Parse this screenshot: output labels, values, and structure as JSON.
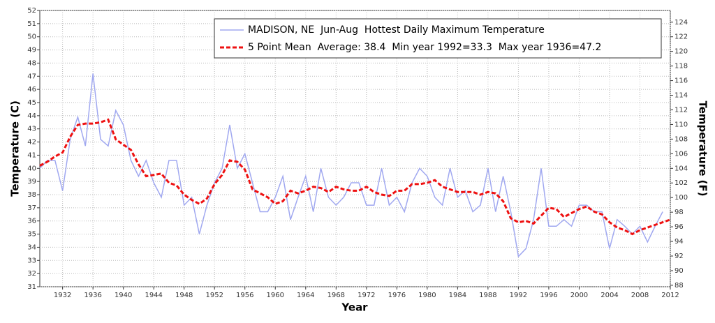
{
  "chart_data": {
    "type": "line",
    "xlabel": "Year",
    "ylabel": "Temperature (C)",
    "y2label": "Temperature (F)",
    "x": [
      1929,
      1930,
      1931,
      1932,
      1933,
      1934,
      1935,
      1936,
      1937,
      1938,
      1939,
      1940,
      1941,
      1942,
      1943,
      1944,
      1945,
      1946,
      1947,
      1948,
      1949,
      1950,
      1951,
      1952,
      1953,
      1954,
      1955,
      1956,
      1957,
      1958,
      1959,
      1960,
      1961,
      1962,
      1963,
      1964,
      1965,
      1966,
      1967,
      1968,
      1969,
      1970,
      1971,
      1972,
      1973,
      1974,
      1975,
      1976,
      1977,
      1978,
      1979,
      1980,
      1981,
      1982,
      1983,
      1984,
      1985,
      1986,
      1987,
      1988,
      1989,
      1990,
      1991,
      1992,
      1993,
      1994,
      1995,
      1996,
      1997,
      1998,
      1999,
      2000,
      2001,
      2002,
      2003,
      2004,
      2005,
      2006,
      2007,
      2008,
      2009,
      2010,
      2011,
      2012
    ],
    "series": [
      {
        "name": "MADISON, NE  Jun-Aug  Hottest Daily Maximum Temperature",
        "color": "#a0a8f0",
        "dash": false,
        "values": [
          40.0,
          40.6,
          40.6,
          38.3,
          42.2,
          43.9,
          41.7,
          47.2,
          42.2,
          41.7,
          44.4,
          43.3,
          40.6,
          39.4,
          40.6,
          38.9,
          37.8,
          40.6,
          40.6,
          37.2,
          37.8,
          35.0,
          37.2,
          38.9,
          40.0,
          43.3,
          40.0,
          41.1,
          38.9,
          36.7,
          36.7,
          37.8,
          39.4,
          36.1,
          37.8,
          39.4,
          36.7,
          40.0,
          37.8,
          37.2,
          37.8,
          38.9,
          38.9,
          37.2,
          37.2,
          40.0,
          37.2,
          37.8,
          36.7,
          38.9,
          40.0,
          39.4,
          37.8,
          37.2,
          40.0,
          37.8,
          38.3,
          36.7,
          37.2,
          40.0,
          36.7,
          39.4,
          36.7,
          33.3,
          33.9,
          36.1,
          40.0,
          35.6,
          35.6,
          36.1,
          35.6,
          37.2,
          37.2,
          36.7,
          36.7,
          33.9,
          36.1,
          35.6,
          35.0,
          35.6,
          34.4,
          35.6,
          36.7,
          null
        ]
      },
      {
        "name": "5 Point Mean  Average: 38.4  Min year 1992=33.3  Max year 1936=47.2",
        "color": "#ee1111",
        "dash": true,
        "values": [
          40.2,
          40.5,
          40.9,
          41.2,
          42.4,
          43.3,
          43.4,
          43.4,
          43.5,
          43.7,
          42.2,
          41.8,
          41.4,
          40.3,
          39.4,
          39.5,
          39.6,
          38.9,
          38.7,
          38.0,
          37.6,
          37.3,
          37.7,
          38.8,
          39.5,
          40.6,
          40.5,
          39.9,
          38.4,
          38.1,
          37.8,
          37.3,
          37.5,
          38.3,
          38.1,
          38.3,
          38.6,
          38.5,
          38.2,
          38.6,
          38.4,
          38.3,
          38.3,
          38.6,
          38.2,
          38.0,
          37.9,
          38.3,
          38.3,
          38.8,
          38.8,
          38.9,
          39.1,
          38.6,
          38.4,
          38.2,
          38.2,
          38.2,
          38.0,
          38.2,
          38.1,
          37.5,
          36.2,
          35.9,
          36.0,
          35.8,
          36.4,
          37.0,
          36.9,
          36.3,
          36.6,
          36.9,
          37.1,
          36.7,
          36.5,
          35.9,
          35.5,
          35.3,
          35.0,
          35.3,
          35.5,
          35.7,
          35.9,
          36.1
        ]
      }
    ],
    "xlim": [
      1929,
      2012
    ],
    "xticks": [
      1932,
      1936,
      1940,
      1944,
      1948,
      1952,
      1956,
      1960,
      1964,
      1968,
      1972,
      1976,
      1980,
      1984,
      1988,
      1992,
      1996,
      2000,
      2004,
      2008,
      2012
    ],
    "ylim": [
      31,
      52
    ],
    "yticks": [
      31,
      32,
      33,
      34,
      35,
      36,
      37,
      38,
      39,
      40,
      41,
      42,
      43,
      44,
      45,
      46,
      47,
      48,
      49,
      50,
      51,
      52
    ],
    "y2lim": [
      87.8,
      125.6
    ],
    "y2ticks": [
      88,
      90,
      92,
      94,
      96,
      98,
      100,
      102,
      104,
      106,
      108,
      110,
      112,
      114,
      116,
      118,
      120,
      122,
      124
    ],
    "grid": true,
    "legend": "top-right"
  }
}
